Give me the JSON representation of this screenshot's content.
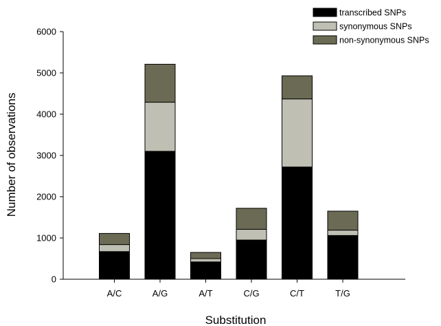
{
  "chart_data": {
    "type": "bar",
    "stacked": true,
    "categories": [
      "A/C",
      "A/G",
      "A/T",
      "C/G",
      "C/T",
      "T/G"
    ],
    "series": [
      {
        "name": "transcribed SNPs",
        "color": "#000000",
        "values": [
          670,
          3100,
          420,
          950,
          2720,
          1060
        ]
      },
      {
        "name": "synonymous SNPs",
        "color": "#bfc0b3",
        "values": [
          170,
          1190,
          80,
          260,
          1650,
          130
        ]
      },
      {
        "name": "non-synonymous SNPs",
        "color": "#6b6b55",
        "values": [
          270,
          920,
          150,
          510,
          560,
          460
        ]
      }
    ],
    "title": "",
    "xlabel": "Substitution",
    "ylabel": "Number of observations",
    "ylim": [
      0,
      6000
    ],
    "yticks": [
      0,
      1000,
      2000,
      3000,
      4000,
      5000,
      6000
    ],
    "grid": false,
    "legend_position": "top-right"
  }
}
